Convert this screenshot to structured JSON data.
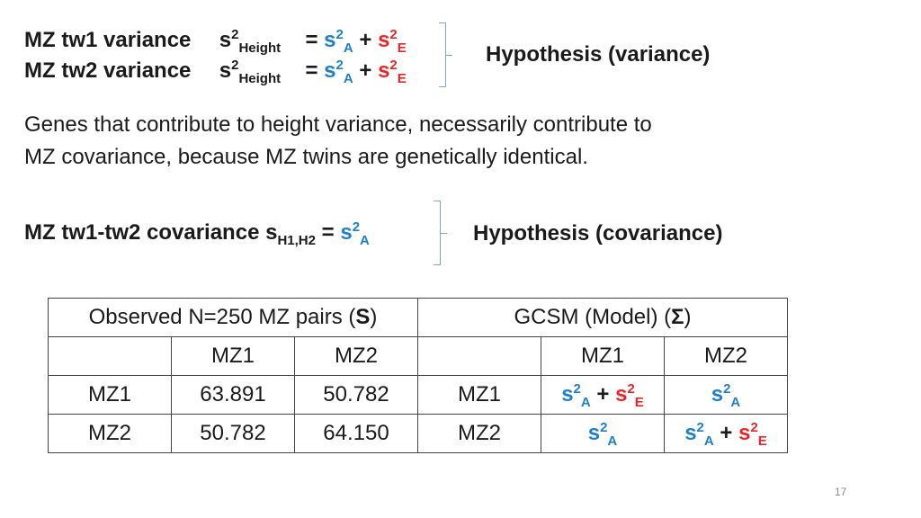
{
  "equations": {
    "line1": {
      "label": "MZ tw1 variance",
      "s": "s",
      "sup": "2",
      "sub": "Height",
      "eq": "= ",
      "sA": "s",
      "supA": "2",
      "subA": "A",
      "plus": " + ",
      "sE": "s",
      "supE": "2",
      "subE": "E"
    },
    "line2": {
      "label": "MZ tw2 variance",
      "s": "s",
      "sup": "2",
      "sub": "Height",
      "eq": "= ",
      "sA": "s",
      "supA": "2",
      "subA": "A",
      "plus": " + ",
      "sE": "s",
      "supE": "2",
      "subE": "E"
    },
    "hypothesis_variance": "Hypothesis (variance)"
  },
  "paragraph": {
    "line1": "Genes that contribute to height variance, necessarily contribute to",
    "line2": "MZ covariance, because MZ twins are genetically identical."
  },
  "covariance": {
    "label": "MZ tw1-tw2 covariance s",
    "sub": "H1,H2",
    "eq": " = ",
    "sA": "s",
    "supA": "2",
    "subA": "A",
    "hypothesis": "Hypothesis (covariance)"
  },
  "table": {
    "observed_header_pre": "Observed N=250 MZ pairs (",
    "observed_header_bold": "S",
    "observed_header_post": ")",
    "model_header_pre": "GCSM (Model) (",
    "model_header_symbol": "Σ",
    "model_header_post": ")",
    "col_headers": [
      "MZ1",
      "MZ2"
    ],
    "row_labels": [
      "MZ1",
      "MZ2"
    ],
    "observed": [
      [
        "63.891",
        "50.782"
      ],
      [
        "50.782",
        "64.150"
      ]
    ],
    "model_sym": {
      "s": "s",
      "sup": "2",
      "A": "A",
      "E": "E",
      "plus": " + "
    }
  },
  "page_number": "17",
  "colors": {
    "blue": "#1f7fc7",
    "red": "#e8262a",
    "bracket": "#7fa7cc"
  }
}
